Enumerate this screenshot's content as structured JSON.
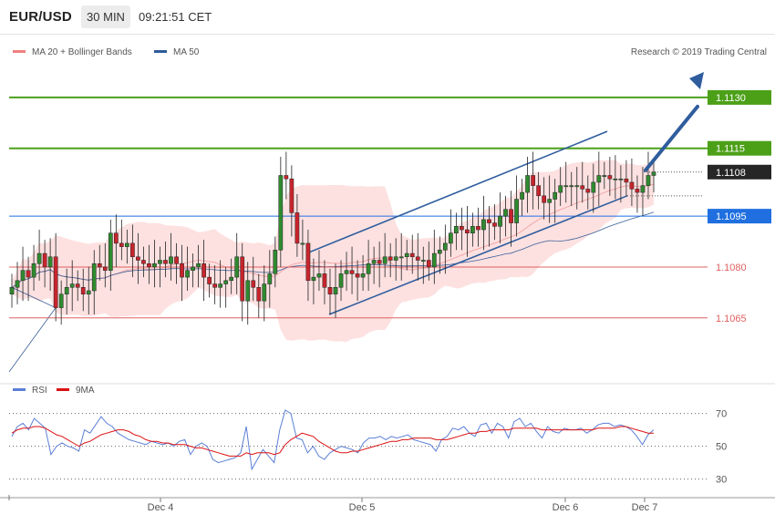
{
  "header": {
    "pair": "EUR/USD",
    "timeframe": "30 MIN",
    "time": "09:21:51 CET"
  },
  "legend": {
    "ma20_label": "MA 20 + Bollinger Bands",
    "ma50_label": "MA 50",
    "ma20_color": "#f08080",
    "ma50_color": "#2e5c9a",
    "rsi_label": "RSI",
    "rsi_ma_label": "9MA",
    "rsi_color": "#5b7fd6",
    "rsi_ma_color": "#dd1111"
  },
  "copyright": "Research © 2019 Trading Central",
  "chart_data": [
    {
      "type": "candlestick",
      "ylim": [
        1.1048,
        1.1141
      ],
      "x_axis_labels": [
        "Dec 4",
        "Dec 5",
        "Dec 6",
        "Dec 7"
      ],
      "price_levels": [
        {
          "value": "1.1130",
          "type": "target",
          "color": "#4ca018"
        },
        {
          "value": "1.1115",
          "type": "resistance",
          "color": "#4ca018"
        },
        {
          "value": "1.1108",
          "type": "last-price",
          "color": "#222222"
        },
        {
          "value": "1.1095",
          "type": "pivot",
          "color": "#1f6fe0"
        },
        {
          "value": "1.1080",
          "type": "support",
          "color": "#e06060"
        },
        {
          "value": "1.1065",
          "type": "support",
          "color": "#e06060"
        }
      ],
      "channel": {
        "upper": [
          [
            1.1084,
            1.112
          ]
        ],
        "lower": [
          [
            1.1066,
            1.1101
          ]
        ]
      },
      "series": [
        {
          "name": "EUR/USD",
          "close_path": [
            1.1074,
            1.1076,
            1.1079,
            1.1077,
            1.1081,
            1.1084,
            1.108,
            1.1083,
            1.1068,
            1.1072,
            1.1074,
            1.1075,
            1.1074,
            1.1072,
            1.1073,
            1.1081,
            1.108,
            1.1079,
            1.109,
            1.1087,
            1.1086,
            1.1087,
            1.1083,
            1.1082,
            1.1081,
            1.108,
            1.1081,
            1.1082,
            1.1081,
            1.1083,
            1.1081,
            1.1077,
            1.1079,
            1.108,
            1.1081,
            1.1077,
            1.1075,
            1.1074,
            1.1075,
            1.1076,
            1.1077,
            1.1083,
            1.107,
            1.1076,
            1.1074,
            1.107,
            1.1075,
            1.1078,
            1.1085,
            1.1107,
            1.1106,
            1.1096,
            1.1087,
            1.1087,
            1.1076,
            1.1077,
            1.1078,
            1.1074,
            1.1072,
            1.1074,
            1.1078,
            1.1079,
            1.1078,
            1.1077,
            1.1078,
            1.1081,
            1.1082,
            1.1081,
            1.1083,
            1.1082,
            1.1083,
            1.1083,
            1.1084,
            1.1083,
            1.1082,
            1.1082,
            1.108,
            1.1084,
            1.1085,
            1.1087,
            1.109,
            1.1092,
            1.1091,
            1.109,
            1.1092,
            1.1091,
            1.1094,
            1.1093,
            1.1092,
            1.1095,
            1.1097,
            1.1093,
            1.11,
            1.1102,
            1.1107,
            1.1104,
            1.1101,
            1.1099,
            1.11,
            1.1102,
            1.1104,
            1.1104,
            1.1104,
            1.1104,
            1.1103,
            1.1102,
            1.1105,
            1.1107,
            1.1107,
            1.1106,
            1.1106,
            1.1106,
            1.1105,
            1.1103,
            1.1102,
            1.1104,
            1.1107,
            1.1108
          ]
        }
      ]
    },
    {
      "type": "line",
      "title": "RSI",
      "y_axis_labels": [
        "70",
        "50",
        "30"
      ],
      "ylim": [
        22,
        82
      ],
      "series": [
        {
          "name": "RSI",
          "color": "#5b7fd6",
          "values": [
            56,
            62,
            64,
            60,
            67,
            64,
            61,
            45,
            50,
            52,
            50,
            49,
            47,
            60,
            58,
            63,
            68,
            64,
            62,
            58,
            56,
            54,
            53,
            52,
            51,
            53,
            52,
            51,
            52,
            50,
            53,
            54,
            45,
            50,
            52,
            50,
            42,
            40,
            41,
            42,
            43,
            46,
            62,
            36,
            42,
            48,
            44,
            40,
            60,
            72,
            70,
            55,
            54,
            46,
            50,
            44,
            42,
            46,
            48,
            50,
            49,
            48,
            46,
            52,
            55,
            55,
            56,
            54,
            56,
            55,
            56,
            57,
            54,
            53,
            52,
            51,
            47,
            54,
            56,
            61,
            60,
            62,
            58,
            56,
            63,
            64,
            58,
            64,
            62,
            55,
            65,
            67,
            62,
            64,
            59,
            55,
            62,
            59,
            58,
            61,
            60,
            60,
            61,
            58,
            60,
            63,
            64,
            64,
            62,
            63,
            62,
            60,
            56,
            51,
            57,
            60
          ]
        },
        {
          "name": "9MA",
          "color": "#dd1111",
          "values": [
            58,
            60,
            61,
            61,
            62,
            62,
            61,
            59,
            57,
            56,
            54,
            52,
            50,
            52,
            53,
            55,
            57,
            58,
            59,
            60,
            60,
            59,
            57,
            56,
            54,
            53,
            53,
            52,
            52,
            51,
            51,
            51,
            50,
            49,
            49,
            48,
            47,
            46,
            45,
            44,
            44,
            44,
            46,
            45,
            46,
            46,
            46,
            45,
            46,
            51,
            54,
            56,
            58,
            57,
            56,
            53,
            51,
            49,
            47,
            46,
            46,
            47,
            47,
            48,
            49,
            50,
            51,
            52,
            53,
            53,
            54,
            54,
            55,
            55,
            55,
            55,
            54,
            54,
            54,
            55,
            56,
            57,
            58,
            58,
            59,
            59,
            60,
            60,
            60,
            60,
            61,
            61,
            61,
            61,
            61,
            60,
            60,
            60,
            60,
            60,
            60,
            60,
            60,
            60,
            60,
            61,
            61,
            61,
            61,
            62,
            62,
            61,
            60,
            59,
            58,
            58
          ]
        }
      ]
    }
  ]
}
